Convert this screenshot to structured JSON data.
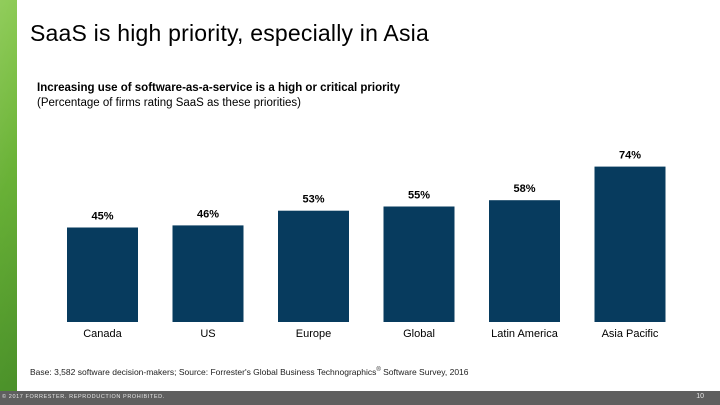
{
  "slide": {
    "title": "SaaS is high priority, especially in Asia"
  },
  "chart_data": {
    "type": "bar",
    "title": "Increasing use of software-as-a-service is a high or critical priority",
    "subtitle": "(Percentage of firms rating SaaS as these priorities)",
    "categories": [
      "Canada",
      "US",
      "Europe",
      "Global",
      "Latin America",
      "Asia Pacific"
    ],
    "values": [
      45,
      46,
      53,
      55,
      58,
      74
    ],
    "value_labels": [
      "45%",
      "46%",
      "53%",
      "55%",
      "58%",
      "74%"
    ],
    "unit": "%",
    "ylim": [
      0,
      100
    ],
    "grid": false,
    "bar_color": "#073b5e"
  },
  "footer": {
    "source_prefix": "Base: 3,582 software decision-makers; Source: Forrester's Global Business Technographics",
    "source_mark": "®",
    "source_suffix": " Software Survey, 2016",
    "copyright": "© 2017 FORRESTER. REPRODUCTION PROHIBITED.",
    "page": "10"
  },
  "colors": {
    "accent": "#6bb535",
    "footer_bar": "#5f5f5f"
  }
}
